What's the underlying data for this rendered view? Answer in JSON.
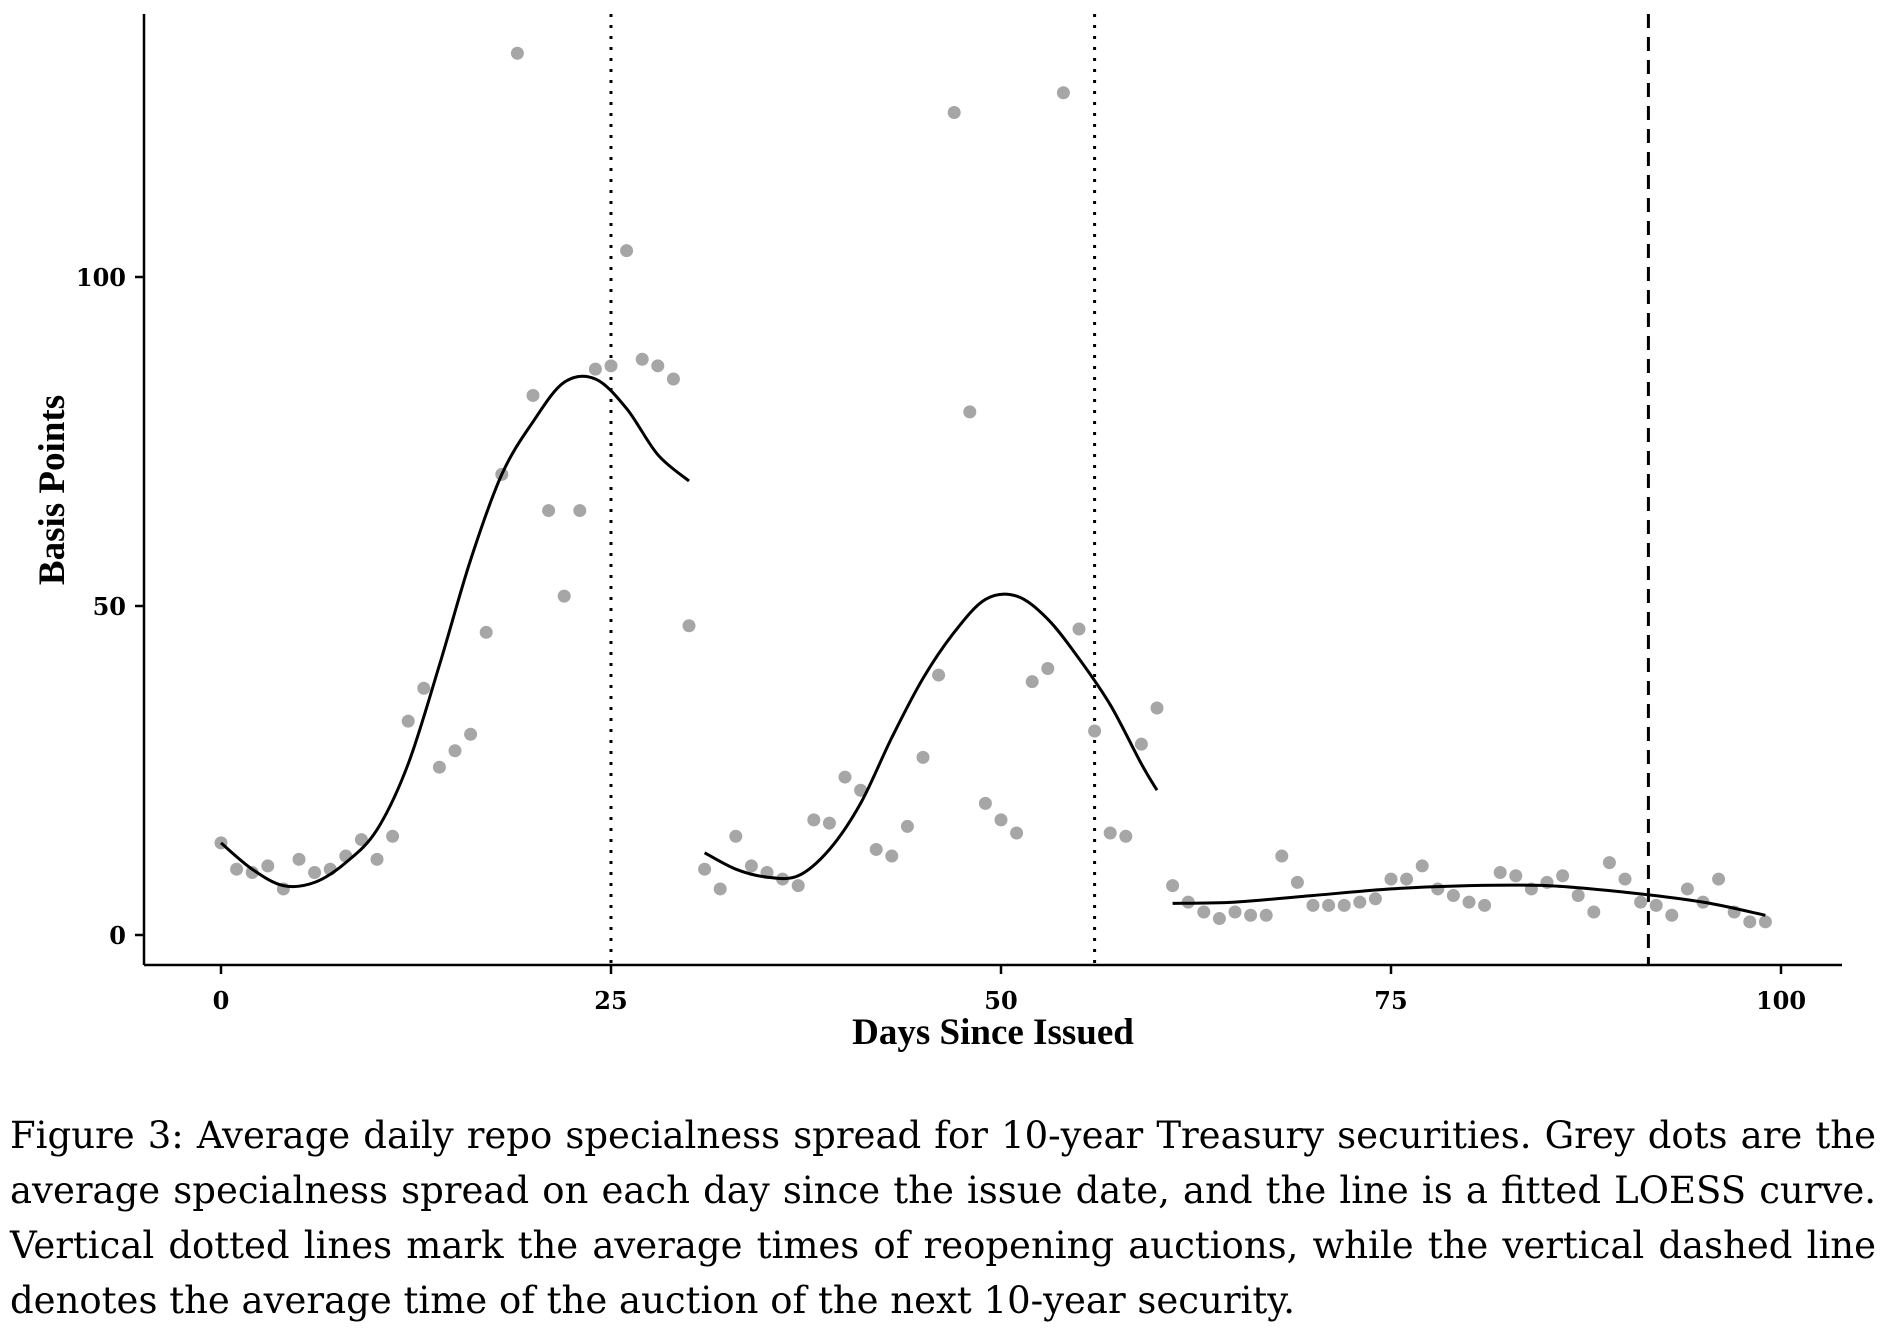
{
  "chart_data": {
    "type": "scatter",
    "title": "",
    "xlabel": "Days Since Issued",
    "ylabel": "Basis Points",
    "xlim": [
      -5,
      104
    ],
    "ylim": [
      -5,
      140
    ],
    "xticks": [
      0,
      25,
      50,
      75,
      100
    ],
    "yticks": [
      0,
      50,
      100
    ],
    "grid": false,
    "legend": "none",
    "colors": {
      "points": "#a6a6a6",
      "curve": "#000000",
      "axis": "#000000"
    },
    "points": {
      "x": [
        0,
        1,
        2,
        3,
        4,
        5,
        6,
        7,
        8,
        9,
        10,
        11,
        12,
        13,
        14,
        15,
        16,
        17,
        18,
        19,
        20,
        21,
        22,
        23,
        24,
        25,
        26,
        27,
        28,
        29,
        30,
        31,
        32,
        33,
        34,
        35,
        36,
        37,
        38,
        39,
        40,
        41,
        42,
        43,
        44,
        45,
        46,
        47,
        48,
        49,
        50,
        51,
        52,
        53,
        54,
        55,
        56,
        57,
        58,
        59,
        60,
        61,
        62,
        63,
        64,
        65,
        66,
        67,
        68,
        69,
        70,
        71,
        72,
        73,
        74,
        75,
        76,
        77,
        78,
        79,
        80,
        81,
        82,
        83,
        84,
        85,
        86,
        87,
        88,
        89,
        90,
        91,
        92,
        93,
        94,
        95,
        96,
        97,
        98,
        99
      ],
      "y": [
        14,
        10,
        9.5,
        10.5,
        7,
        11.5,
        9.5,
        10,
        12,
        14.5,
        11.5,
        15,
        32.5,
        37.5,
        25.5,
        28,
        30.5,
        46,
        70,
        134,
        82,
        64.5,
        51.5,
        64.5,
        86,
        86.5,
        104,
        87.5,
        86.5,
        84.5,
        47,
        10,
        7,
        15,
        10.5,
        9.5,
        8.5,
        7.5,
        17.5,
        17,
        24,
        22,
        13,
        12,
        16.5,
        27,
        39.5,
        125,
        79.5,
        20,
        17.5,
        15.5,
        38.5,
        40.5,
        128,
        46.5,
        31,
        15.5,
        15,
        29,
        34.5,
        7.5,
        5,
        3.5,
        2.5,
        3.5,
        3,
        3,
        12,
        8,
        4.5,
        4.5,
        4.5,
        5,
        5.5,
        8.5,
        8.5,
        10.5,
        7,
        6,
        5,
        4.5,
        9.5,
        9,
        7,
        8,
        9,
        6,
        3.5,
        11,
        8.5,
        5,
        4.5,
        3,
        7,
        5,
        8.5,
        3.5,
        2,
        2
      ]
    },
    "curves": [
      {
        "x": [
          0,
          2,
          4,
          6,
          8,
          10,
          12,
          14,
          16,
          18,
          20,
          22,
          24,
          26,
          28,
          30
        ],
        "y": [
          14,
          10,
          7.5,
          8,
          11,
          16,
          26,
          41,
          57,
          70,
          78,
          84,
          84.5,
          80,
          73,
          69
        ]
      },
      {
        "x": [
          31,
          33,
          35,
          37,
          39,
          41,
          43,
          45,
          47,
          49,
          51,
          53,
          55,
          57,
          59,
          60
        ],
        "y": [
          12.5,
          10,
          8.8,
          9,
          13,
          20,
          30,
          39,
          46,
          51,
          51.5,
          48,
          42,
          35,
          26,
          22
        ]
      },
      {
        "x": [
          61,
          65,
          70,
          75,
          80,
          85,
          90,
          95,
          99
        ],
        "y": [
          4.8,
          5,
          6,
          7,
          7.5,
          7.5,
          6.5,
          5,
          3
        ]
      }
    ],
    "reference_lines": [
      {
        "x": 25,
        "style": "dotted"
      },
      {
        "x": 56,
        "style": "dotted"
      },
      {
        "x": 91.5,
        "style": "dashed"
      }
    ]
  },
  "caption": "Figure 3: Average daily repo specialness spread for 10-year Treasury securities. Grey dots are the average specialness spread on each day since the issue date, and the line is a fitted LOESS curve. Vertical dotted lines mark the average times of reopening auctions, while the vertical dashed line denotes the average time of the auction of the next 10-year security."
}
